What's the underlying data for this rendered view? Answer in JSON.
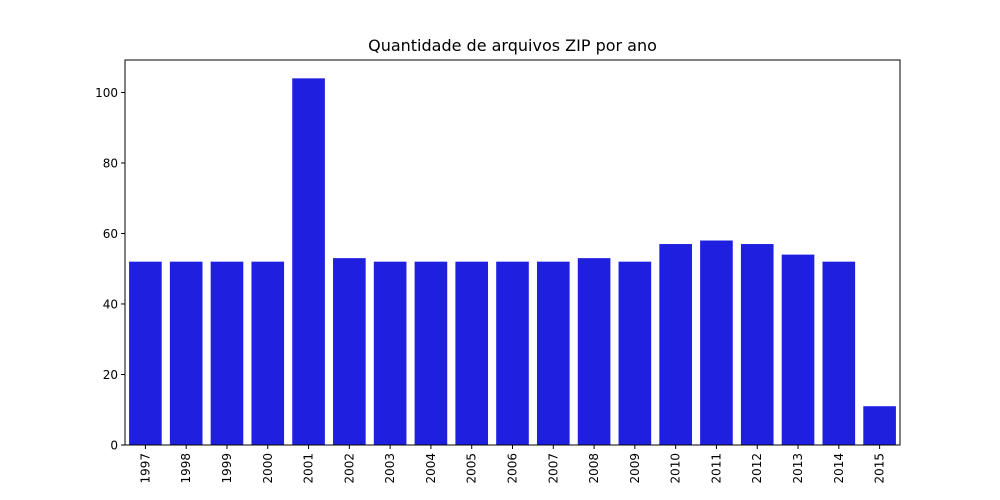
{
  "chart_data": {
    "type": "bar",
    "title": "Quantidade de arquivos ZIP por ano",
    "xlabel": "",
    "ylabel": "",
    "categories": [
      "1997",
      "1998",
      "1999",
      "2000",
      "2001",
      "2002",
      "2003",
      "2004",
      "2005",
      "2006",
      "2007",
      "2008",
      "2009",
      "2010",
      "2011",
      "2012",
      "2013",
      "2014",
      "2015"
    ],
    "values": [
      52,
      52,
      52,
      52,
      104,
      53,
      52,
      52,
      52,
      52,
      52,
      53,
      52,
      57,
      58,
      57,
      54,
      52,
      11
    ],
    "ylim": [
      0,
      109.2
    ],
    "yticks": [
      0,
      20,
      40,
      60,
      80,
      100
    ],
    "bar_color": "#1f1fe0",
    "grid": false,
    "x_tick_rotation": "vertical"
  }
}
